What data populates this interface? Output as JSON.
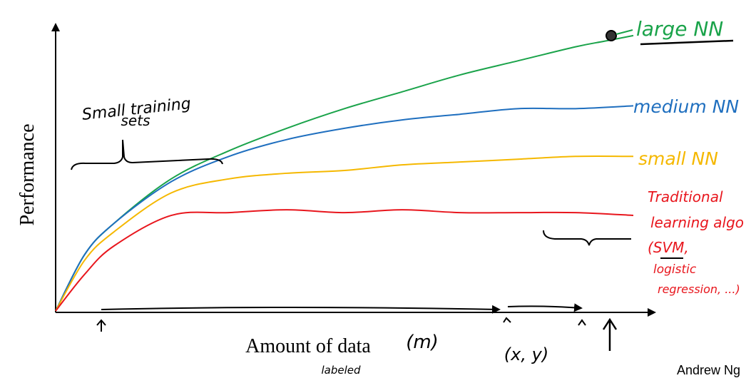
{
  "chart_data": {
    "type": "line",
    "xlabel": "Amount of data",
    "ylabel": "Performance",
    "series": [
      {
        "name": "large NN",
        "color": "#1aa34a",
        "x": [
          0,
          0.05,
          0.1,
          0.2,
          0.3,
          0.4,
          0.5,
          0.6,
          0.7,
          0.8,
          0.9,
          0.95,
          1.0
        ],
        "y": [
          0,
          0.2,
          0.31,
          0.47,
          0.57,
          0.65,
          0.72,
          0.78,
          0.84,
          0.89,
          0.94,
          0.96,
          0.98
        ]
      },
      {
        "name": "medium NN",
        "color": "#1f6fbf",
        "x": [
          0,
          0.05,
          0.1,
          0.2,
          0.3,
          0.4,
          0.5,
          0.6,
          0.7,
          0.8,
          0.9,
          1.0
        ],
        "y": [
          0,
          0.2,
          0.31,
          0.46,
          0.55,
          0.61,
          0.65,
          0.68,
          0.7,
          0.72,
          0.72,
          0.73
        ]
      },
      {
        "name": "small NN",
        "color": "#f5b800",
        "x": [
          0,
          0.05,
          0.1,
          0.2,
          0.3,
          0.4,
          0.5,
          0.6,
          0.7,
          0.8,
          0.9,
          1.0
        ],
        "y": [
          0,
          0.18,
          0.28,
          0.42,
          0.47,
          0.49,
          0.5,
          0.52,
          0.53,
          0.54,
          0.55,
          0.55
        ]
      },
      {
        "name": "Traditional learning algo",
        "color": "#e8161d",
        "x": [
          0,
          0.05,
          0.1,
          0.2,
          0.3,
          0.4,
          0.5,
          0.6,
          0.7,
          0.8,
          0.9,
          1.0
        ],
        "y": [
          0,
          0.13,
          0.23,
          0.34,
          0.35,
          0.36,
          0.35,
          0.36,
          0.35,
          0.35,
          0.35,
          0.34
        ]
      }
    ]
  },
  "annotations": {
    "large_nn": "large NN",
    "medium_nn": "medium NN",
    "small_nn": "small NN",
    "traditional_line1": "Traditional",
    "traditional_line2": "learning algo",
    "traditional_line3": "(SVM,",
    "traditional_line4": "logistic",
    "traditional_line5": "regression, ...)",
    "small_training_line1": "Small training",
    "small_training_line2": "sets",
    "m_label": "(m)",
    "xy_label": "(x, y)",
    "labeled": "labeled"
  },
  "footer": {
    "author": "Andrew Ng"
  }
}
